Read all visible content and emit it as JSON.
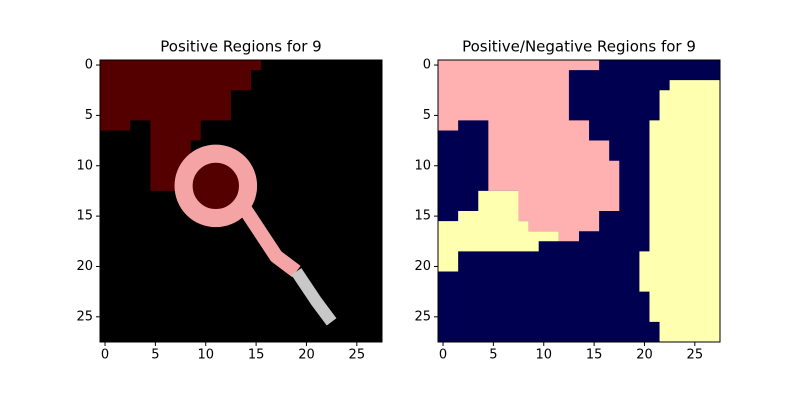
{
  "chart_data": [
    {
      "type": "image",
      "title": "Positive Regions for 9",
      "xlim": [
        -0.5,
        27.5
      ],
      "ylim": [
        27.5,
        -0.5
      ],
      "xticks": [
        0,
        5,
        10,
        15,
        20,
        25
      ],
      "yticks": [
        0,
        5,
        10,
        15,
        20,
        25
      ]
    },
    {
      "type": "image",
      "title": "Positive/Negative Regions for 9",
      "xlim": [
        -0.5,
        27.5
      ],
      "ylim": [
        27.5,
        -0.5
      ],
      "xticks": [
        0,
        5,
        10,
        15,
        20,
        25
      ],
      "yticks": [
        0,
        5,
        10,
        15,
        20,
        25
      ]
    }
  ]
}
